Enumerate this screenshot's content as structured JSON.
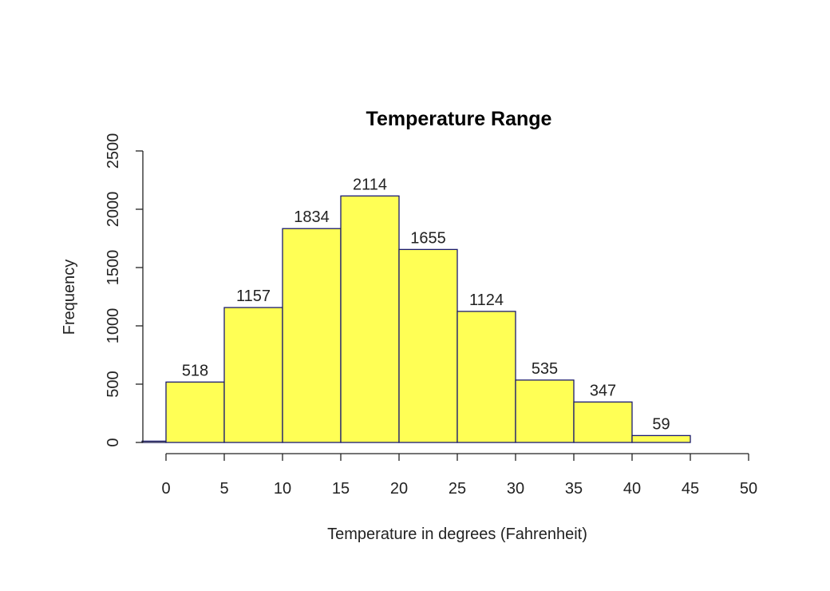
{
  "chart_data": {
    "type": "bar",
    "title": "Temperature Range",
    "xlabel": "Temperature in degrees (Fahrenheit)",
    "ylabel": "Frequency",
    "bins": [
      {
        "start": -5,
        "end": 0,
        "value": 11,
        "label": ""
      },
      {
        "start": 0,
        "end": 5,
        "value": 518,
        "label": "518"
      },
      {
        "start": 5,
        "end": 10,
        "value": 1157,
        "label": "1157"
      },
      {
        "start": 10,
        "end": 15,
        "value": 1834,
        "label": "1834"
      },
      {
        "start": 15,
        "end": 20,
        "value": 2114,
        "label": "2114"
      },
      {
        "start": 20,
        "end": 25,
        "value": 1655,
        "label": "1655"
      },
      {
        "start": 25,
        "end": 30,
        "value": 1124,
        "label": "1124"
      },
      {
        "start": 30,
        "end": 35,
        "value": 535,
        "label": "535"
      },
      {
        "start": 35,
        "end": 40,
        "value": 347,
        "label": "347"
      },
      {
        "start": 40,
        "end": 45,
        "value": 59,
        "label": "59"
      }
    ],
    "x_ticks": [
      "0",
      "5",
      "10",
      "15",
      "20",
      "25",
      "30",
      "35",
      "40",
      "45",
      "50"
    ],
    "y_ticks": [
      "0",
      "500",
      "1000",
      "1500",
      "2000",
      "2500"
    ],
    "xlim": [
      -2,
      50
    ],
    "ylim": [
      0,
      2500
    ],
    "grid": false,
    "bar_fill": "#ffff55",
    "bar_border": "#1a1a6e"
  }
}
